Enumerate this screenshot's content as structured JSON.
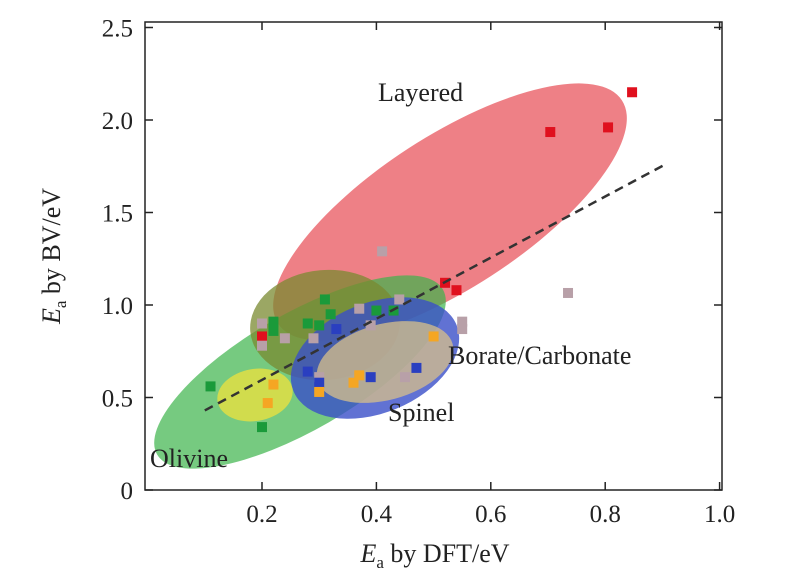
{
  "chart_data": {
    "type": "scatter",
    "xlabel": {
      "italic": "E",
      "sub": "a",
      "rest": " by DFT/eV"
    },
    "ylabel": {
      "italic": "E",
      "sub": "a",
      "rest": " by BV/eV"
    },
    "xlim": [
      0,
      1.0
    ],
    "ylim": [
      0,
      2.5
    ],
    "xticks": [
      "0.2",
      "0.4",
      "0.6",
      "0.8",
      "1.0"
    ],
    "xtick_values": [
      0.2,
      0.4,
      0.6,
      0.8,
      1.0
    ],
    "yticks": [
      "0",
      "0.5",
      "1.0",
      "1.5",
      "2.0",
      "2.5"
    ],
    "ytick_values": [
      0,
      0.5,
      1.0,
      1.5,
      2.0,
      2.5
    ],
    "grid": false,
    "regions": [
      {
        "label": "Layered",
        "color": "#e8555e"
      },
      {
        "label": "Olivine",
        "color": "#3cb44a"
      },
      {
        "label": "Spinel",
        "color": "#3a4fc8"
      },
      {
        "label": "Borate/Carbonate",
        "color": "#d8c08a"
      }
    ],
    "trend_line": {
      "x": [
        0.1,
        0.905
      ],
      "y": [
        0.43,
        1.76
      ],
      "style": "dashed"
    },
    "series": [
      {
        "color": "#e0101e",
        "points": [
          [
            0.704,
            1.935
          ],
          [
            0.805,
            1.96
          ],
          [
            0.847,
            2.15
          ],
          [
            0.52,
            1.12
          ],
          [
            0.54,
            1.08
          ],
          [
            0.2,
            0.83
          ]
        ]
      },
      {
        "color": "#1a9a3a",
        "points": [
          [
            0.31,
            1.03
          ],
          [
            0.22,
            0.91
          ],
          [
            0.22,
            0.86
          ],
          [
            0.28,
            0.9
          ],
          [
            0.3,
            0.89
          ],
          [
            0.32,
            0.95
          ],
          [
            0.4,
            0.97
          ],
          [
            0.43,
            0.97
          ],
          [
            0.11,
            0.56
          ],
          [
            0.2,
            0.34
          ]
        ]
      },
      {
        "color": "#b8a0a8",
        "points": [
          [
            0.2,
            0.9
          ],
          [
            0.2,
            0.78
          ],
          [
            0.24,
            0.82
          ],
          [
            0.29,
            0.82
          ],
          [
            0.37,
            0.98
          ],
          [
            0.44,
            1.03
          ],
          [
            0.39,
            0.89
          ],
          [
            0.55,
            0.91
          ],
          [
            0.55,
            0.87
          ],
          [
            0.45,
            0.61
          ],
          [
            0.3,
            0.61
          ],
          [
            0.41,
            1.29
          ],
          [
            0.735,
            1.065
          ]
        ]
      },
      {
        "color": "#2a3fc0",
        "points": [
          [
            0.28,
            0.64
          ],
          [
            0.39,
            0.61
          ],
          [
            0.47,
            0.66
          ],
          [
            0.33,
            0.87
          ],
          [
            0.3,
            0.58
          ]
        ]
      },
      {
        "color": "#f5a623",
        "points": [
          [
            0.22,
            0.57
          ],
          [
            0.21,
            0.47
          ],
          [
            0.3,
            0.53
          ],
          [
            0.36,
            0.58
          ],
          [
            0.37,
            0.62
          ],
          [
            0.5,
            0.83
          ]
        ]
      }
    ]
  }
}
